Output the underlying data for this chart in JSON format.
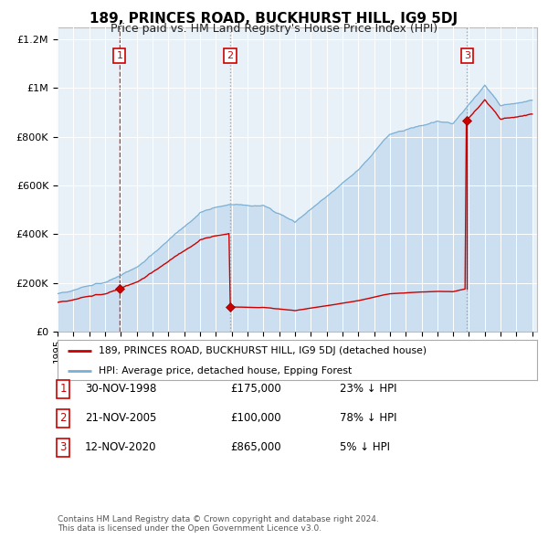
{
  "title": "189, PRINCES ROAD, BUCKHURST HILL, IG9 5DJ",
  "subtitle": "Price paid vs. HM Land Registry's House Price Index (HPI)",
  "ylim": [
    0,
    1250000
  ],
  "yticks": [
    0,
    200000,
    400000,
    600000,
    800000,
    1000000,
    1200000
  ],
  "xstart_year": 1995,
  "xend_year": 2025,
  "hpi_fill_color": "#ccdff0",
  "hpi_line_color": "#7ab0d4",
  "price_color": "#cc0000",
  "vline1_color": "#cc0000",
  "vline23_color": "#999999",
  "sale_dates": [
    1998.917,
    2005.9,
    2020.875
  ],
  "sale_prices": [
    175000,
    100000,
    865000
  ],
  "sale_labels": [
    "1",
    "2",
    "3"
  ],
  "sale_date_strs": [
    "30-NOV-1998",
    "21-NOV-2005",
    "12-NOV-2020"
  ],
  "sale_price_strs": [
    "£175,000",
    "£100,000",
    "£865,000"
  ],
  "sale_hpi_strs": [
    "23% ↓ HPI",
    "78% ↓ HPI",
    "5% ↓ HPI"
  ],
  "legend_property": "189, PRINCES ROAD, BUCKHURST HILL, IG9 5DJ (detached house)",
  "legend_hpi": "HPI: Average price, detached house, Epping Forest",
  "footer": "Contains HM Land Registry data © Crown copyright and database right 2024.\nThis data is licensed under the Open Government Licence v3.0.",
  "bg_color": "#e8f0f8",
  "grid_color": "#ffffff",
  "title_fontsize": 11,
  "subtitle_fontsize": 9,
  "tick_fontsize": 7.5,
  "ytick_fontsize": 8
}
